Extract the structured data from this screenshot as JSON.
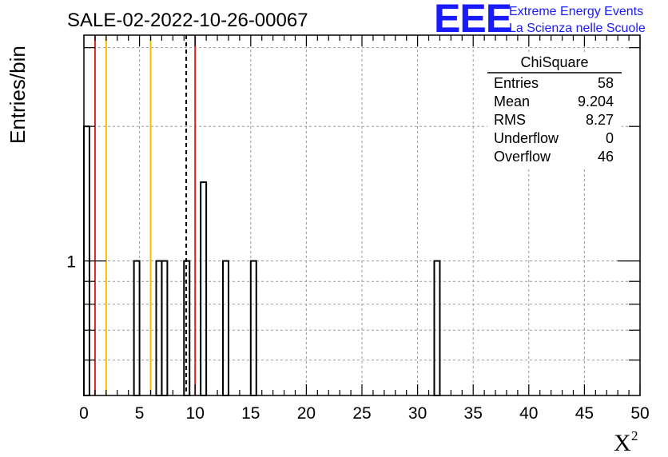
{
  "chart_data": {
    "type": "bar",
    "title": "SALE-02-2022-10-26-00067",
    "ylabel": "Entries/bin",
    "xlabel": "X",
    "xlabel_superscript": "2",
    "xlim": [
      0,
      50
    ],
    "yscale": "log",
    "ylim": [
      0.5,
      3.2
    ],
    "grid": true,
    "x_ticks": [
      "0",
      "5",
      "10",
      "15",
      "20",
      "25",
      "30",
      "35",
      "40",
      "45",
      "50"
    ],
    "y_ticks": [
      "1"
    ],
    "bin_width": 0.5,
    "bins": [
      {
        "x": 0.0,
        "value": 2
      },
      {
        "x": 4.5,
        "value": 1
      },
      {
        "x": 6.5,
        "value": 1
      },
      {
        "x": 7.0,
        "value": 1
      },
      {
        "x": 9.0,
        "value": 1
      },
      {
        "x": 10.5,
        "value": 1.5
      },
      {
        "x": 12.5,
        "value": 1
      },
      {
        "x": 15.0,
        "value": 1
      },
      {
        "x": 31.5,
        "value": 1
      }
    ],
    "vertical_lines": [
      {
        "x": 1.0,
        "color": "#dd2222",
        "style": "solid"
      },
      {
        "x": 2.0,
        "color": "#f2c200",
        "style": "solid"
      },
      {
        "x": 6.0,
        "color": "#f2c200",
        "style": "solid"
      },
      {
        "x": 9.2,
        "color": "#000000",
        "style": "dashed"
      },
      {
        "x": 10.0,
        "color": "#dd2222",
        "style": "solid"
      }
    ]
  },
  "stats_box": {
    "name": "ChiSquare",
    "rows": [
      {
        "label": "Entries",
        "value": "58"
      },
      {
        "label": "Mean",
        "value": "9.204"
      },
      {
        "label": "RMS",
        "value": "8.27"
      },
      {
        "label": "Underflow",
        "value": "0"
      },
      {
        "label": "Overflow",
        "value": "46"
      }
    ]
  },
  "logo": {
    "mark": "EEE",
    "line1": "Extreme Energy Events",
    "line2": "La Scienza nelle Scuole"
  }
}
